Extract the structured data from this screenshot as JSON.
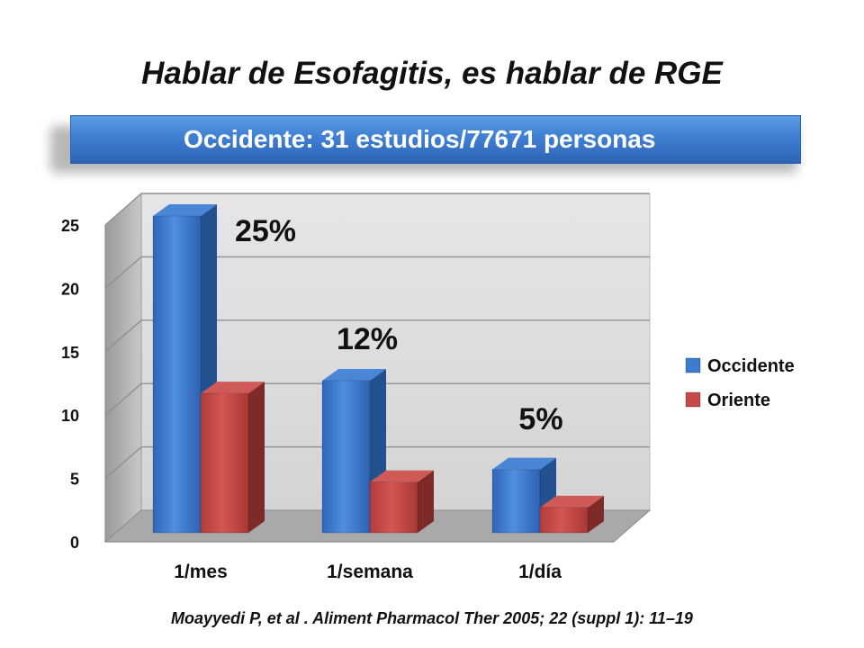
{
  "title": "Hablar de Esofagitis, es hablar de RGE",
  "banner": {
    "text": "Occidente: 31 estudios/77671 personas"
  },
  "source": "Moayyedi P, et al . Aliment Pharmacol Ther 2005; 22 (suppl 1): 11–19",
  "colors": {
    "banner": "#3f7fd2",
    "occidente": "#3d7ad0",
    "oriente": "#c74a4a"
  },
  "chart_data": {
    "type": "bar",
    "categories": [
      "1/mes",
      "1/semana",
      "1/día"
    ],
    "series": [
      {
        "name": "Occidente",
        "values": [
          25,
          12,
          5
        ]
      },
      {
        "name": "Oriente",
        "values": [
          11,
          4,
          2
        ]
      }
    ],
    "ylim": [
      0,
      25
    ],
    "yticks": [
      "0",
      "5",
      "10",
      "15",
      "20",
      "25"
    ],
    "annotations": [
      "25%",
      "12%",
      "5%"
    ],
    "legend_position": "right",
    "grid": true,
    "style": "3d"
  }
}
